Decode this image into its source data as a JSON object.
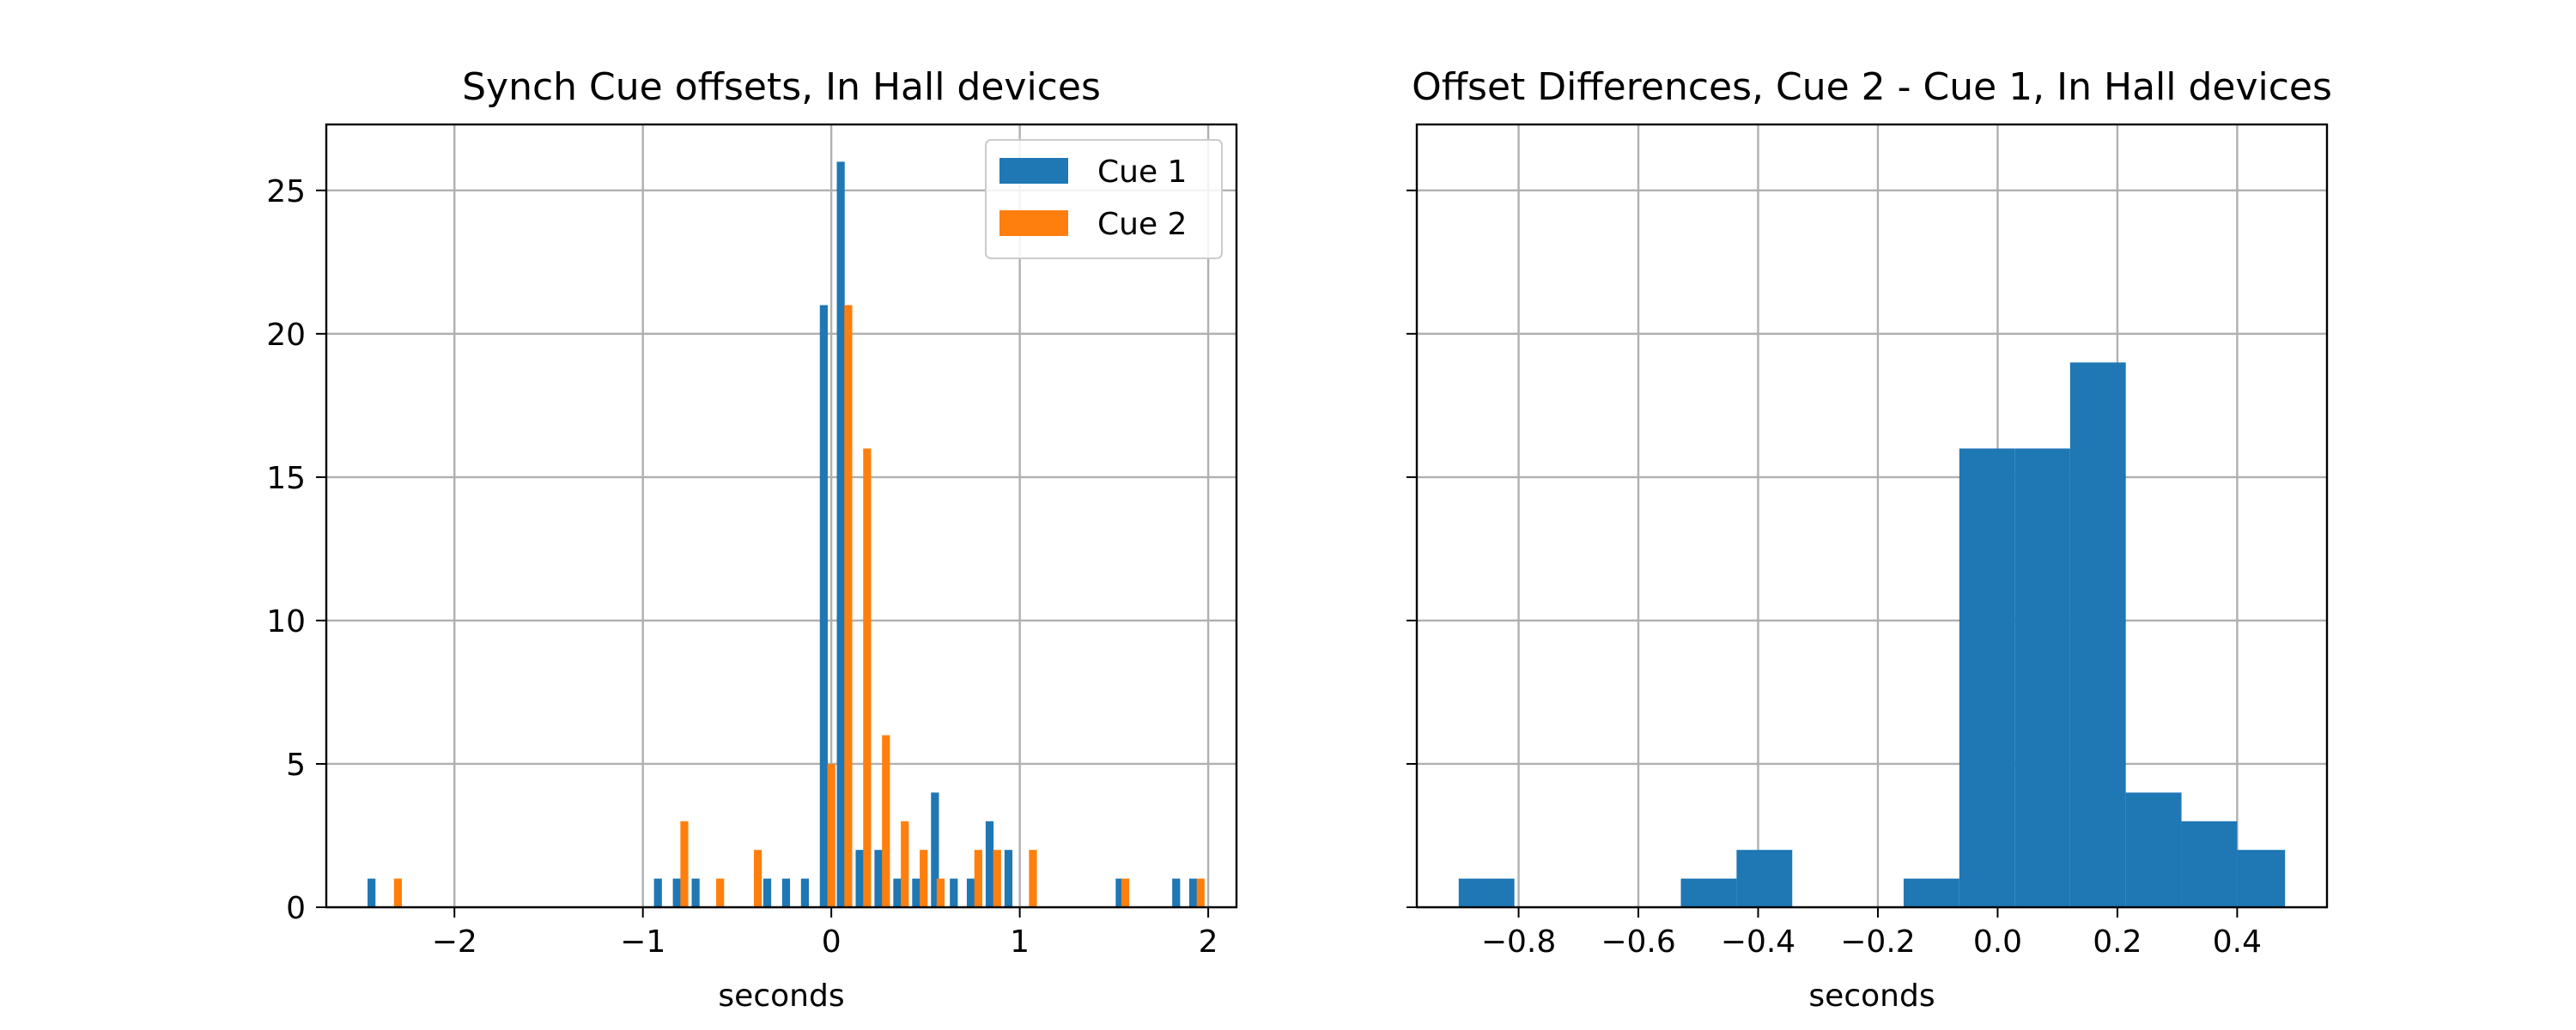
{
  "chart_data": [
    {
      "type": "bar",
      "title": "Synch Cue offsets, In Hall devices",
      "xlabel": "seconds",
      "ylabel": "",
      "xlim": [
        -2.68,
        2.15
      ],
      "ylim": [
        0,
        27.3
      ],
      "xticks": [
        -2,
        -1,
        0,
        1,
        2
      ],
      "yticks": [
        0,
        5,
        10,
        15,
        20,
        25
      ],
      "grid": true,
      "legend_position": "top-right",
      "series": [
        {
          "name": "Cue 1",
          "color": "#1f77b4",
          "x": [
            -2.44,
            -0.92,
            -0.82,
            -0.72,
            -0.34,
            -0.24,
            -0.14,
            -0.04,
            0.05,
            0.15,
            0.25,
            0.35,
            0.45,
            0.55,
            0.65,
            0.74,
            0.84,
            0.94,
            1.53,
            1.83,
            1.92
          ],
          "values": [
            1,
            1,
            1,
            1,
            1,
            1,
            1,
            21,
            26,
            2,
            2,
            1,
            1,
            4,
            1,
            1,
            3,
            2,
            1,
            1,
            1
          ]
        },
        {
          "name": "Cue 2",
          "color": "#ff7f0e",
          "x": [
            -2.3,
            -0.78,
            -0.59,
            -0.39,
            0.0,
            0.09,
            0.19,
            0.29,
            0.39,
            0.49,
            0.58,
            0.78,
            0.88,
            1.07,
            1.56,
            1.96
          ],
          "values": [
            1,
            3,
            1,
            2,
            5,
            21,
            16,
            6,
            3,
            2,
            1,
            2,
            2,
            2,
            1,
            1
          ]
        }
      ],
      "bar_width": 0.042
    },
    {
      "type": "bar",
      "title": "Offset Differences, Cue 2 - Cue 1, In Hall devices",
      "xlabel": "seconds",
      "ylabel": "",
      "xlim": [
        -0.97,
        0.55
      ],
      "ylim": [
        0,
        27.3
      ],
      "xticks": [
        -0.8,
        -0.6,
        -0.4,
        -0.2,
        0.0,
        0.2,
        0.4
      ],
      "xtick_labels": [
        "−0.8",
        "−0.6",
        "−0.4",
        "−0.2",
        "0.0",
        "0.2",
        "0.4"
      ],
      "yticks": [
        0,
        5,
        10,
        15,
        20,
        25
      ],
      "grid": true,
      "series": [
        {
          "color": "#1f77b4",
          "bin_edges": [
            -0.9,
            -0.807,
            -0.714,
            -0.621,
            -0.529,
            -0.436,
            -0.343,
            -0.25,
            -0.157,
            -0.064,
            0.029,
            0.121,
            0.214,
            0.307,
            0.4,
            0.48
          ],
          "values": [
            1,
            0,
            0,
            0,
            1,
            2,
            0,
            0,
            1,
            16,
            16,
            19,
            4,
            3,
            2
          ]
        }
      ]
    }
  ]
}
